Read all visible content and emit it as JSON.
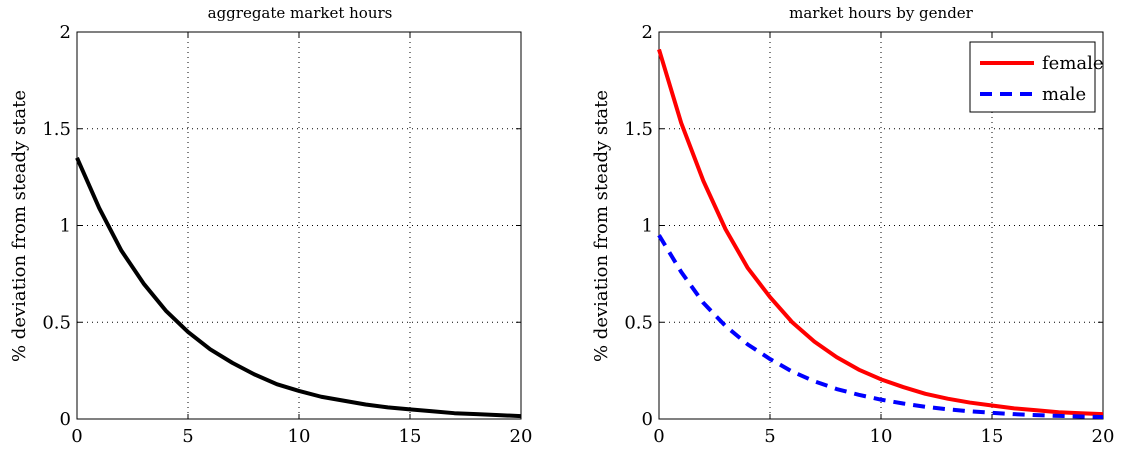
{
  "chart_data": [
    {
      "type": "line",
      "title": "aggregate market hours",
      "xlabel": "",
      "ylabel": "% deviation from steady state",
      "xlim": [
        0,
        20
      ],
      "ylim": [
        0,
        2
      ],
      "xticks": [
        0,
        5,
        10,
        15,
        20
      ],
      "yticks": [
        0,
        0.5,
        1,
        1.5,
        2
      ],
      "x_tick_labels": [
        "0",
        "5",
        "10",
        "15",
        "20"
      ],
      "y_tick_labels": [
        "0",
        "0.5",
        "1",
        "1.5",
        "2"
      ],
      "grid": true,
      "legend": null,
      "x": [
        0,
        1,
        2,
        3,
        4,
        5,
        6,
        7,
        8,
        9,
        10,
        11,
        12,
        13,
        14,
        15,
        16,
        17,
        18,
        19,
        20
      ],
      "series": [
        {
          "color": "#000000",
          "style": "solid",
          "values": [
            1.35,
            1.09,
            0.87,
            0.7,
            0.56,
            0.45,
            0.36,
            0.29,
            0.23,
            0.18,
            0.145,
            0.115,
            0.095,
            0.075,
            0.06,
            0.05,
            0.04,
            0.03,
            0.025,
            0.02,
            0.015
          ]
        }
      ]
    },
    {
      "type": "line",
      "title": "market hours by gender",
      "xlabel": "",
      "ylabel": "% deviation from steady state",
      "xlim": [
        0,
        20
      ],
      "ylim": [
        0,
        2
      ],
      "xticks": [
        0,
        5,
        10,
        15,
        20
      ],
      "yticks": [
        0,
        0.5,
        1,
        1.5,
        2
      ],
      "x_tick_labels": [
        "0",
        "5",
        "10",
        "15",
        "20"
      ],
      "y_tick_labels": [
        "0",
        "0.5",
        "1",
        "1.5",
        "2"
      ],
      "grid": true,
      "legend": "top-right",
      "x": [
        0,
        1,
        2,
        3,
        4,
        5,
        6,
        7,
        8,
        9,
        10,
        11,
        12,
        13,
        14,
        15,
        16,
        17,
        18,
        19,
        20
      ],
      "series": [
        {
          "name": "female",
          "color": "#ff0000",
          "style": "solid",
          "values": [
            1.91,
            1.53,
            1.23,
            0.98,
            0.78,
            0.63,
            0.5,
            0.4,
            0.32,
            0.255,
            0.205,
            0.165,
            0.13,
            0.105,
            0.085,
            0.07,
            0.055,
            0.045,
            0.035,
            0.03,
            0.025
          ]
        },
        {
          "name": "male",
          "color": "#0000ff",
          "style": "dashed",
          "values": [
            0.95,
            0.76,
            0.6,
            0.48,
            0.385,
            0.31,
            0.245,
            0.195,
            0.155,
            0.125,
            0.1,
            0.08,
            0.063,
            0.05,
            0.04,
            0.032,
            0.025,
            0.02,
            0.016,
            0.013,
            0.01
          ]
        }
      ]
    }
  ]
}
